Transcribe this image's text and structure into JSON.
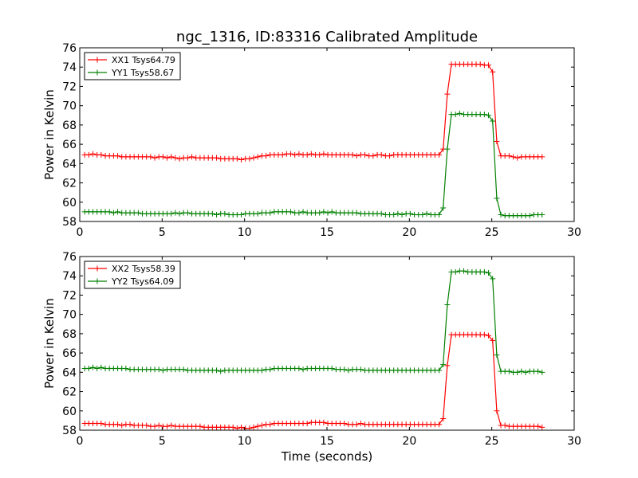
{
  "title": "ngc_1316, ID:83316 Calibrated Amplitude",
  "chart_data": [
    {
      "type": "line",
      "ylabel": "Power in Kelvin",
      "xlabel": "",
      "xlim": [
        0,
        30
      ],
      "ylim": [
        58,
        76
      ],
      "xticks": [
        "0",
        "5",
        "10",
        "15",
        "20",
        "25",
        "30"
      ],
      "yticks": [
        "58",
        "60",
        "62",
        "64",
        "66",
        "68",
        "70",
        "72",
        "74",
        "76"
      ],
      "grid": false,
      "legend_position": "top-left",
      "series": [
        {
          "name": "XX1 Tsys64.79",
          "color": "#ff0000",
          "x": [
            0.3,
            0.55,
            0.8,
            1.05,
            1.3,
            1.55,
            1.8,
            2.05,
            2.3,
            2.55,
            2.8,
            3.05,
            3.3,
            3.55,
            3.8,
            4.05,
            4.3,
            4.55,
            4.8,
            5.05,
            5.3,
            5.55,
            5.8,
            6.05,
            6.3,
            6.55,
            6.8,
            7.05,
            7.3,
            7.55,
            7.8,
            8.05,
            8.3,
            8.55,
            8.8,
            9.05,
            9.3,
            9.55,
            9.8,
            10.05,
            10.3,
            10.55,
            10.8,
            11.05,
            11.3,
            11.55,
            11.8,
            12.05,
            12.3,
            12.55,
            12.8,
            13.05,
            13.3,
            13.55,
            13.8,
            14.05,
            14.3,
            14.55,
            14.8,
            15.05,
            15.3,
            15.55,
            15.8,
            16.05,
            16.3,
            16.55,
            16.8,
            17.05,
            17.3,
            17.55,
            17.8,
            18.05,
            18.3,
            18.55,
            18.8,
            19.05,
            19.3,
            19.55,
            19.8,
            20.05,
            20.3,
            20.55,
            20.8,
            21.05,
            21.3,
            21.55,
            21.8,
            22.05,
            22.3,
            22.55,
            22.8,
            23.05,
            23.3,
            23.55,
            23.8,
            24.05,
            24.3,
            24.55,
            24.8,
            25.05,
            25.3,
            25.55,
            25.8,
            26.05,
            26.3,
            26.55,
            26.8,
            27.05,
            27.3,
            27.55,
            27.8,
            28.05
          ],
          "y": [
            64.9,
            64.9,
            65.0,
            64.9,
            64.9,
            64.8,
            64.8,
            64.8,
            64.8,
            64.7,
            64.7,
            64.7,
            64.7,
            64.7,
            64.7,
            64.7,
            64.7,
            64.6,
            64.7,
            64.7,
            64.6,
            64.7,
            64.6,
            64.5,
            64.6,
            64.6,
            64.7,
            64.6,
            64.6,
            64.6,
            64.6,
            64.6,
            64.6,
            64.5,
            64.5,
            64.5,
            64.5,
            64.5,
            64.4,
            64.5,
            64.5,
            64.6,
            64.7,
            64.8,
            64.8,
            64.9,
            64.9,
            64.9,
            64.9,
            65.0,
            65.0,
            64.9,
            65.0,
            64.9,
            64.9,
            65.0,
            64.9,
            64.9,
            65.0,
            64.9,
            64.9,
            64.9,
            64.9,
            64.9,
            64.9,
            64.9,
            64.8,
            64.9,
            64.9,
            64.8,
            64.8,
            64.9,
            64.9,
            64.8,
            64.8,
            64.9,
            64.9,
            64.9,
            64.9,
            64.9,
            64.9,
            64.9,
            64.9,
            64.9,
            64.9,
            64.9,
            64.9,
            65.5,
            71.2,
            74.3,
            74.3,
            74.3,
            74.3,
            74.3,
            74.3,
            74.3,
            74.3,
            74.2,
            74.2,
            73.5,
            66.3,
            64.8,
            64.8,
            64.8,
            64.7,
            64.6,
            64.7,
            64.7,
            64.7,
            64.7,
            64.7,
            64.7
          ]
        },
        {
          "name": "YY1 Tsys58.67",
          "color": "#008000",
          "x": [
            0.3,
            0.55,
            0.8,
            1.05,
            1.3,
            1.55,
            1.8,
            2.05,
            2.3,
            2.55,
            2.8,
            3.05,
            3.3,
            3.55,
            3.8,
            4.05,
            4.3,
            4.55,
            4.8,
            5.05,
            5.3,
            5.55,
            5.8,
            6.05,
            6.3,
            6.55,
            6.8,
            7.05,
            7.3,
            7.55,
            7.8,
            8.05,
            8.3,
            8.55,
            8.8,
            9.05,
            9.3,
            9.55,
            9.8,
            10.05,
            10.3,
            10.55,
            10.8,
            11.05,
            11.3,
            11.55,
            11.8,
            12.05,
            12.3,
            12.55,
            12.8,
            13.05,
            13.3,
            13.55,
            13.8,
            14.05,
            14.3,
            14.55,
            14.8,
            15.05,
            15.3,
            15.55,
            15.8,
            16.05,
            16.3,
            16.55,
            16.8,
            17.05,
            17.3,
            17.55,
            17.8,
            18.05,
            18.3,
            18.55,
            18.8,
            19.05,
            19.3,
            19.55,
            19.8,
            20.05,
            20.3,
            20.55,
            20.8,
            21.05,
            21.3,
            21.55,
            21.8,
            22.05,
            22.3,
            22.55,
            22.8,
            23.05,
            23.3,
            23.55,
            23.8,
            24.05,
            24.3,
            24.55,
            24.8,
            25.05,
            25.3,
            25.55,
            25.8,
            26.05,
            26.3,
            26.55,
            26.8,
            27.05,
            27.3,
            27.55,
            27.8,
            28.05
          ],
          "y": [
            59.0,
            59.0,
            59.0,
            59.0,
            59.0,
            59.0,
            59.0,
            58.9,
            59.0,
            58.9,
            58.9,
            58.9,
            58.9,
            58.9,
            58.8,
            58.8,
            58.8,
            58.8,
            58.8,
            58.8,
            58.8,
            58.8,
            58.9,
            58.8,
            58.9,
            58.9,
            58.8,
            58.8,
            58.8,
            58.8,
            58.8,
            58.8,
            58.7,
            58.8,
            58.8,
            58.7,
            58.7,
            58.7,
            58.7,
            58.8,
            58.8,
            58.8,
            58.8,
            58.9,
            58.9,
            58.9,
            59.0,
            59.0,
            59.0,
            59.0,
            59.0,
            58.9,
            58.9,
            59.0,
            58.9,
            58.9,
            58.9,
            58.9,
            59.0,
            58.9,
            59.0,
            58.9,
            58.9,
            58.9,
            58.9,
            58.9,
            58.9,
            58.8,
            58.8,
            58.8,
            58.8,
            58.8,
            58.8,
            58.7,
            58.7,
            58.7,
            58.8,
            58.7,
            58.8,
            58.8,
            58.7,
            58.7,
            58.7,
            58.8,
            58.7,
            58.7,
            58.7,
            59.4,
            65.5,
            69.1,
            69.1,
            69.2,
            69.1,
            69.1,
            69.1,
            69.1,
            69.1,
            69.1,
            69.0,
            68.4,
            60.4,
            58.7,
            58.6,
            58.6,
            58.6,
            58.6,
            58.6,
            58.6,
            58.6,
            58.7,
            58.7,
            58.7
          ]
        }
      ]
    },
    {
      "type": "line",
      "ylabel": "Power in Kelvin",
      "xlabel": "Time (seconds)",
      "xlim": [
        0,
        30
      ],
      "ylim": [
        58,
        76
      ],
      "xticks": [
        "0",
        "5",
        "10",
        "15",
        "20",
        "25",
        "30"
      ],
      "yticks": [
        "58",
        "60",
        "62",
        "64",
        "66",
        "68",
        "70",
        "72",
        "74",
        "76"
      ],
      "grid": false,
      "legend_position": "top-left",
      "series": [
        {
          "name": "XX2 Tsys58.39",
          "color": "#ff0000",
          "x": [
            0.3,
            0.55,
            0.8,
            1.05,
            1.3,
            1.55,
            1.8,
            2.05,
            2.3,
            2.55,
            2.8,
            3.05,
            3.3,
            3.55,
            3.8,
            4.05,
            4.3,
            4.55,
            4.8,
            5.05,
            5.3,
            5.55,
            5.8,
            6.05,
            6.3,
            6.55,
            6.8,
            7.05,
            7.3,
            7.55,
            7.8,
            8.05,
            8.3,
            8.55,
            8.8,
            9.05,
            9.3,
            9.55,
            9.8,
            10.05,
            10.3,
            10.55,
            10.8,
            11.05,
            11.3,
            11.55,
            11.8,
            12.05,
            12.3,
            12.55,
            12.8,
            13.05,
            13.3,
            13.55,
            13.8,
            14.05,
            14.3,
            14.55,
            14.8,
            15.05,
            15.3,
            15.55,
            15.8,
            16.05,
            16.3,
            16.55,
            16.8,
            17.05,
            17.3,
            17.55,
            17.8,
            18.05,
            18.3,
            18.55,
            18.8,
            19.05,
            19.3,
            19.55,
            19.8,
            20.05,
            20.3,
            20.55,
            20.8,
            21.05,
            21.3,
            21.55,
            21.8,
            22.05,
            22.3,
            22.55,
            22.8,
            23.05,
            23.3,
            23.55,
            23.8,
            24.05,
            24.3,
            24.55,
            24.8,
            25.05,
            25.3,
            25.55,
            25.8,
            26.05,
            26.3,
            26.55,
            26.8,
            27.05,
            27.3,
            27.55,
            27.8,
            28.05
          ],
          "y": [
            58.7,
            58.7,
            58.7,
            58.7,
            58.7,
            58.6,
            58.6,
            58.6,
            58.6,
            58.5,
            58.6,
            58.6,
            58.5,
            58.5,
            58.5,
            58.5,
            58.4,
            58.4,
            58.5,
            58.4,
            58.4,
            58.5,
            58.4,
            58.4,
            58.4,
            58.4,
            58.4,
            58.4,
            58.4,
            58.3,
            58.3,
            58.3,
            58.3,
            58.3,
            58.3,
            58.3,
            58.3,
            58.2,
            58.3,
            58.2,
            58.2,
            58.3,
            58.4,
            58.5,
            58.6,
            58.6,
            58.7,
            58.7,
            58.7,
            58.7,
            58.7,
            58.7,
            58.7,
            58.7,
            58.7,
            58.8,
            58.8,
            58.8,
            58.8,
            58.7,
            58.7,
            58.7,
            58.7,
            58.7,
            58.6,
            58.6,
            58.6,
            58.7,
            58.6,
            58.6,
            58.6,
            58.6,
            58.6,
            58.6,
            58.6,
            58.6,
            58.6,
            58.6,
            58.6,
            58.6,
            58.6,
            58.6,
            58.6,
            58.6,
            58.6,
            58.6,
            58.6,
            59.2,
            64.7,
            67.9,
            67.9,
            67.9,
            67.9,
            67.9,
            67.9,
            67.9,
            67.9,
            67.9,
            67.8,
            67.3,
            60.0,
            58.5,
            58.5,
            58.4,
            58.4,
            58.4,
            58.4,
            58.4,
            58.4,
            58.4,
            58.4,
            58.3
          ]
        },
        {
          "name": "YY2 Tsys64.09",
          "color": "#008000",
          "x": [
            0.3,
            0.55,
            0.8,
            1.05,
            1.3,
            1.55,
            1.8,
            2.05,
            2.3,
            2.55,
            2.8,
            3.05,
            3.3,
            3.55,
            3.8,
            4.05,
            4.3,
            4.55,
            4.8,
            5.05,
            5.3,
            5.55,
            5.8,
            6.05,
            6.3,
            6.55,
            6.8,
            7.05,
            7.3,
            7.55,
            7.8,
            8.05,
            8.3,
            8.55,
            8.8,
            9.05,
            9.3,
            9.55,
            9.8,
            10.05,
            10.3,
            10.55,
            10.8,
            11.05,
            11.3,
            11.55,
            11.8,
            12.05,
            12.3,
            12.55,
            12.8,
            13.05,
            13.3,
            13.55,
            13.8,
            14.05,
            14.3,
            14.55,
            14.8,
            15.05,
            15.3,
            15.55,
            15.8,
            16.05,
            16.3,
            16.55,
            16.8,
            17.05,
            17.3,
            17.55,
            17.8,
            18.05,
            18.3,
            18.55,
            18.8,
            19.05,
            19.3,
            19.55,
            19.8,
            20.05,
            20.3,
            20.55,
            20.8,
            21.05,
            21.3,
            21.55,
            21.8,
            22.05,
            22.3,
            22.55,
            22.8,
            23.05,
            23.3,
            23.55,
            23.8,
            24.05,
            24.3,
            24.55,
            24.8,
            25.05,
            25.3,
            25.55,
            25.8,
            26.05,
            26.3,
            26.55,
            26.8,
            27.05,
            27.3,
            27.55,
            27.8,
            28.05
          ],
          "y": [
            64.4,
            64.4,
            64.5,
            64.4,
            64.5,
            64.4,
            64.4,
            64.4,
            64.4,
            64.4,
            64.4,
            64.3,
            64.3,
            64.3,
            64.3,
            64.3,
            64.3,
            64.3,
            64.3,
            64.2,
            64.3,
            64.3,
            64.3,
            64.3,
            64.3,
            64.2,
            64.2,
            64.2,
            64.2,
            64.2,
            64.2,
            64.2,
            64.2,
            64.1,
            64.2,
            64.2,
            64.2,
            64.2,
            64.2,
            64.2,
            64.2,
            64.2,
            64.2,
            64.2,
            64.3,
            64.3,
            64.4,
            64.4,
            64.4,
            64.4,
            64.4,
            64.4,
            64.4,
            64.3,
            64.4,
            64.4,
            64.4,
            64.4,
            64.4,
            64.4,
            64.4,
            64.3,
            64.3,
            64.3,
            64.2,
            64.3,
            64.3,
            64.3,
            64.2,
            64.2,
            64.2,
            64.2,
            64.2,
            64.2,
            64.2,
            64.2,
            64.2,
            64.2,
            64.2,
            64.2,
            64.2,
            64.2,
            64.2,
            64.2,
            64.2,
            64.2,
            64.2,
            64.8,
            71.0,
            74.4,
            74.4,
            74.5,
            74.5,
            74.4,
            74.4,
            74.4,
            74.4,
            74.4,
            74.3,
            73.7,
            65.8,
            64.1,
            64.1,
            64.1,
            64.0,
            64.0,
            64.1,
            64.0,
            64.1,
            64.1,
            64.1,
            64.0
          ]
        }
      ]
    }
  ]
}
